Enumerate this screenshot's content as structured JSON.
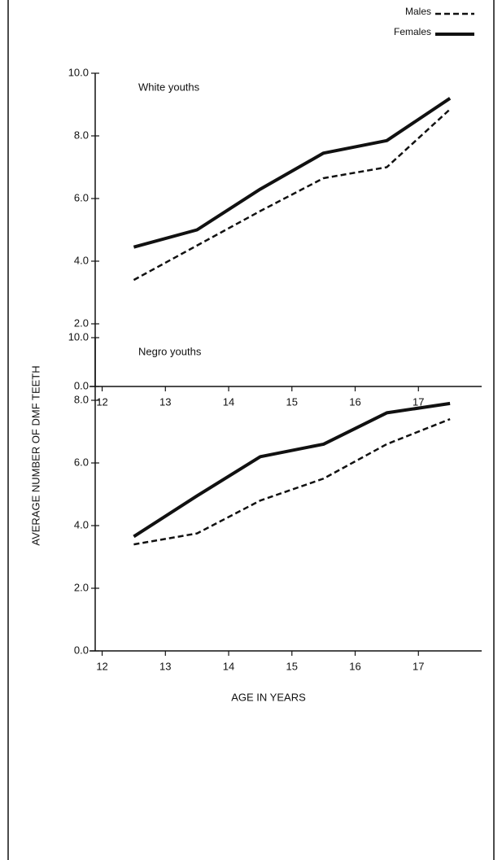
{
  "chart_data": [
    {
      "type": "line",
      "title": "White youths",
      "y_label": "AVERAGE NUMBER OF DMF TEETH",
      "x": [
        12.5,
        13.5,
        14.5,
        15.5,
        16.5,
        17.5
      ],
      "series": [
        {
          "name": "Males",
          "color": "#111111",
          "line_style": "dashed",
          "values": [
            3.4,
            4.5,
            5.6,
            6.65,
            7.0,
            8.85
          ]
        },
        {
          "name": "Females",
          "color": "#111111",
          "line_style": "solid",
          "values": [
            4.45,
            5.0,
            6.3,
            7.45,
            7.85,
            9.2
          ]
        }
      ],
      "xlim": [
        11.8,
        18.0
      ],
      "xticks": [
        12,
        13,
        14,
        15,
        16,
        17
      ],
      "ylim": [
        0,
        10
      ],
      "yticks": [
        {
          "value": 0,
          "label": "0.0"
        },
        {
          "value": 2,
          "label": "2.0"
        },
        {
          "value": 4,
          "label": "4.0"
        },
        {
          "value": 6,
          "label": "6.0"
        },
        {
          "value": 8,
          "label": "8.0"
        },
        {
          "value": 10,
          "label": "10.0"
        }
      ]
    },
    {
      "type": "line",
      "title": "Negro youths",
      "x_label": "AGE IN YEARS",
      "x": [
        12.5,
        13.5,
        14.5,
        15.5,
        16.5,
        17.5
      ],
      "series": [
        {
          "color": "#111111",
          "line_style": "dashed",
          "values": [
            3.4,
            3.75,
            4.8,
            5.5,
            6.6,
            7.4
          ]
        },
        {
          "color": "#111111",
          "line_style": "solid",
          "values": [
            3.65,
            4.95,
            6.2,
            6.6,
            7.6,
            7.9
          ]
        }
      ],
      "xlim": [
        11.8,
        18.0
      ],
      "xticks": [
        12,
        13,
        14,
        15,
        16,
        17
      ],
      "ylim": [
        0,
        10
      ],
      "yticks": [
        {
          "value": 0,
          "label": "0.0"
        },
        {
          "value": 2,
          "label": "2.0"
        },
        {
          "value": 4,
          "label": "4.0"
        },
        {
          "value": 6,
          "label": "6.0"
        },
        {
          "value": 8,
          "label": "8.0"
        },
        {
          "value": 10,
          "label": "10.0"
        }
      ]
    }
  ]
}
